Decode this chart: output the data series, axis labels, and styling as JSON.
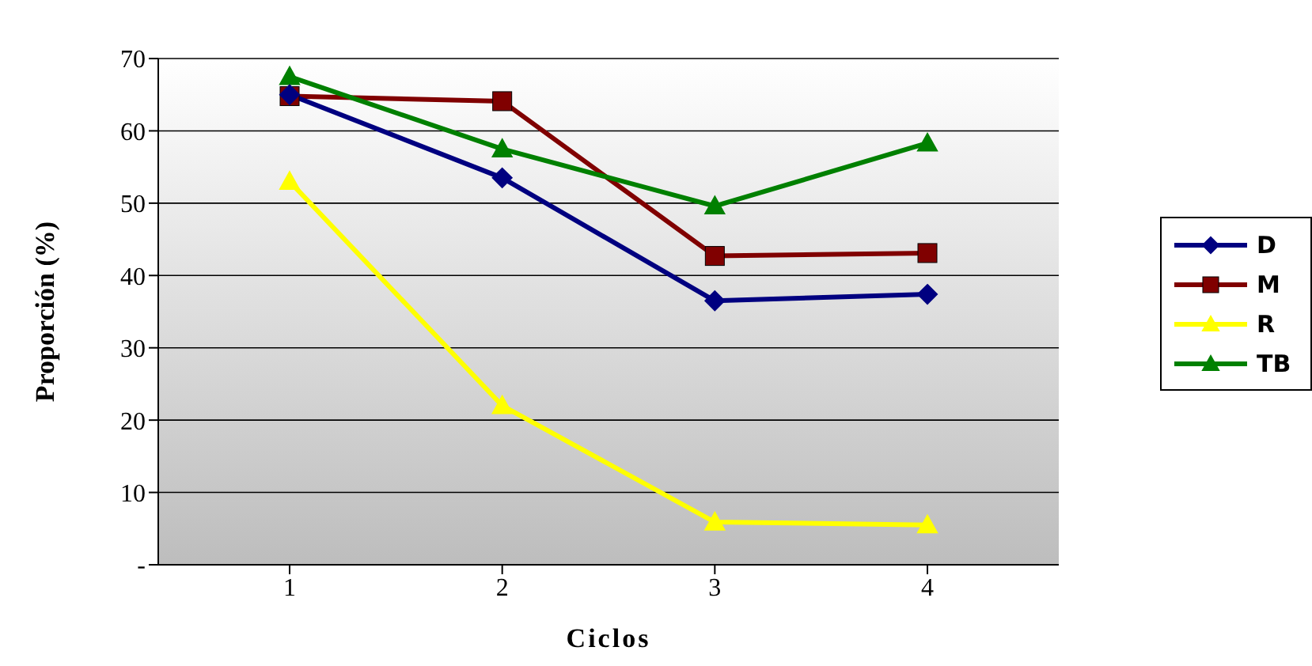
{
  "chart_data": {
    "type": "line",
    "xlabel": "Ciclos",
    "ylabel": "Proporción (%)",
    "categories": [
      "1",
      "2",
      "3",
      "4"
    ],
    "series": [
      {
        "name": "D",
        "color": "#000080",
        "marker": "diamond",
        "values": [
          65,
          53.5,
          36.5,
          37.4
        ]
      },
      {
        "name": "M",
        "color": "#800000",
        "marker": "square",
        "values": [
          64.8,
          64.1,
          42.7,
          43.1
        ]
      },
      {
        "name": "R",
        "color": "#ffff00",
        "marker": "triangle",
        "values": [
          53,
          22,
          5.9,
          5.5
        ]
      },
      {
        "name": "TB",
        "color": "#008000",
        "marker": "triangle",
        "values": [
          67.5,
          57.5,
          49.6,
          58.3
        ]
      }
    ],
    "ylim": [
      0,
      70
    ],
    "yticks": [
      {
        "value": 0,
        "label": "-"
      },
      10,
      20,
      30,
      40,
      50,
      60,
      70
    ],
    "grid": "y",
    "legend": "right"
  }
}
